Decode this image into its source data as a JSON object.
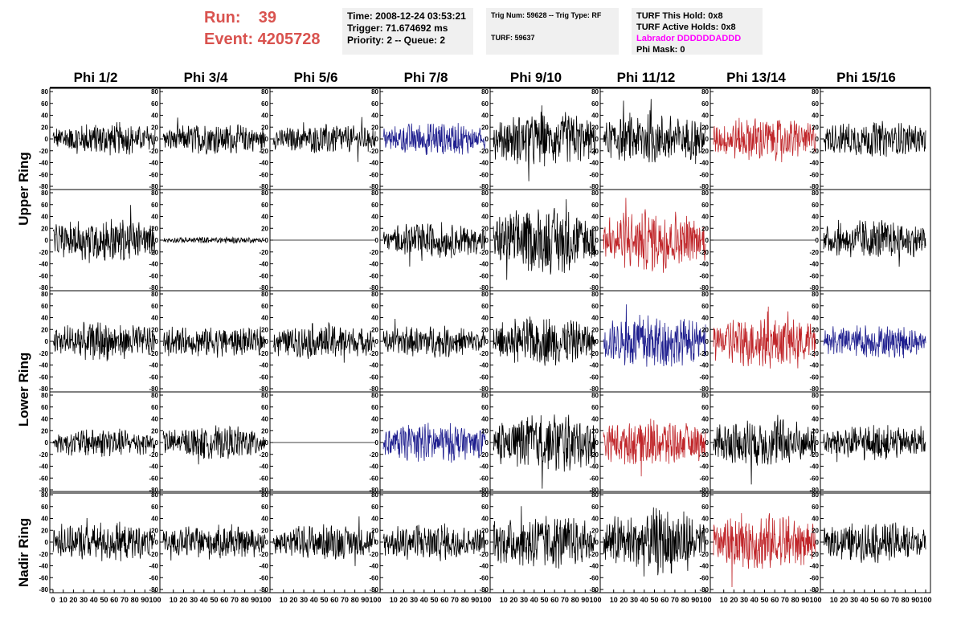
{
  "header": {
    "run_label": "Run:    39",
    "event_label": "Event: 4205728",
    "time": "Time: 2008-12-24 03:53:21",
    "trigger": "Trigger: 71.674692 ms",
    "priority": "Priority: 2 -- Queue: 2",
    "trig_num": "Trig Num: 59628 -- Trig Type: RF",
    "turf": "TURF: 59637",
    "turf_this_hold": "TURF This Hold: 0x8",
    "turf_active_holds": "TURF Active Holds: 0x8",
    "labrador": "Labrador DDDDDDADDD",
    "phi_mask": "Phi Mask: 0"
  },
  "colors": {
    "run_text": "#d9534f",
    "labrador_text": "#ff00ff",
    "trace_default": "#000000",
    "trace_blue": "#1f1f8f",
    "trace_red": "#c0262a"
  },
  "phi_headers": [
    "Phi 1/2",
    "Phi 3/4",
    "Phi 5/6",
    "Phi 7/8",
    "Phi 9/10",
    "Phi 11/12",
    "Phi 13/14",
    "Phi 15/16"
  ],
  "ring_labels": [
    "Upper Ring",
    "Lower Ring",
    "Nadir Ring"
  ],
  "chart_data": {
    "type": "line",
    "rows": 5,
    "cols": 8,
    "ylim": [
      -80,
      80
    ],
    "xlim": [
      0,
      100
    ],
    "yticks": [
      "80",
      "60",
      "40",
      "20",
      "0",
      "-20",
      "-40",
      "-60",
      "-80"
    ],
    "xticks": [
      "0",
      "10",
      "20",
      "30",
      "40",
      "50",
      "60",
      "70",
      "80",
      "90",
      "100"
    ],
    "panels": [
      [
        {
          "color": "black",
          "amp": 15
        },
        {
          "color": "black",
          "amp": 14
        },
        {
          "color": "black",
          "amp": 13
        },
        {
          "color": "blue",
          "amp": 15
        },
        {
          "color": "black",
          "amp": 25
        },
        {
          "color": "black",
          "amp": 22
        },
        {
          "color": "red",
          "amp": 20
        },
        {
          "color": "black",
          "amp": 16
        }
      ],
      [
        {
          "color": "black",
          "amp": 20
        },
        {
          "color": "black",
          "amp": 3
        },
        {
          "color": "black",
          "amp": 0
        },
        {
          "color": "black",
          "amp": 16
        },
        {
          "color": "black",
          "amp": 30
        },
        {
          "color": "red",
          "amp": 28
        },
        {
          "color": "black",
          "amp": 0
        },
        {
          "color": "black",
          "amp": 18
        }
      ],
      [
        {
          "color": "black",
          "amp": 18
        },
        {
          "color": "black",
          "amp": 14
        },
        {
          "color": "black",
          "amp": 16
        },
        {
          "color": "black",
          "amp": 14
        },
        {
          "color": "black",
          "amp": 22
        },
        {
          "color": "blue",
          "amp": 24
        },
        {
          "color": "red",
          "amp": 25
        },
        {
          "color": "blue",
          "amp": 15
        }
      ],
      [
        {
          "color": "black",
          "amp": 13
        },
        {
          "color": "black",
          "amp": 15
        },
        {
          "color": "black",
          "amp": 0
        },
        {
          "color": "blue",
          "amp": 18
        },
        {
          "color": "black",
          "amp": 27
        },
        {
          "color": "red",
          "amp": 22
        },
        {
          "color": "black",
          "amp": 22
        },
        {
          "color": "black",
          "amp": 16
        }
      ],
      [
        {
          "color": "black",
          "amp": 18
        },
        {
          "color": "black",
          "amp": 15
        },
        {
          "color": "black",
          "amp": 16
        },
        {
          "color": "black",
          "amp": 17
        },
        {
          "color": "black",
          "amp": 24
        },
        {
          "color": "black",
          "amp": 30
        },
        {
          "color": "red",
          "amp": 26
        },
        {
          "color": "black",
          "amp": 18
        }
      ]
    ]
  }
}
